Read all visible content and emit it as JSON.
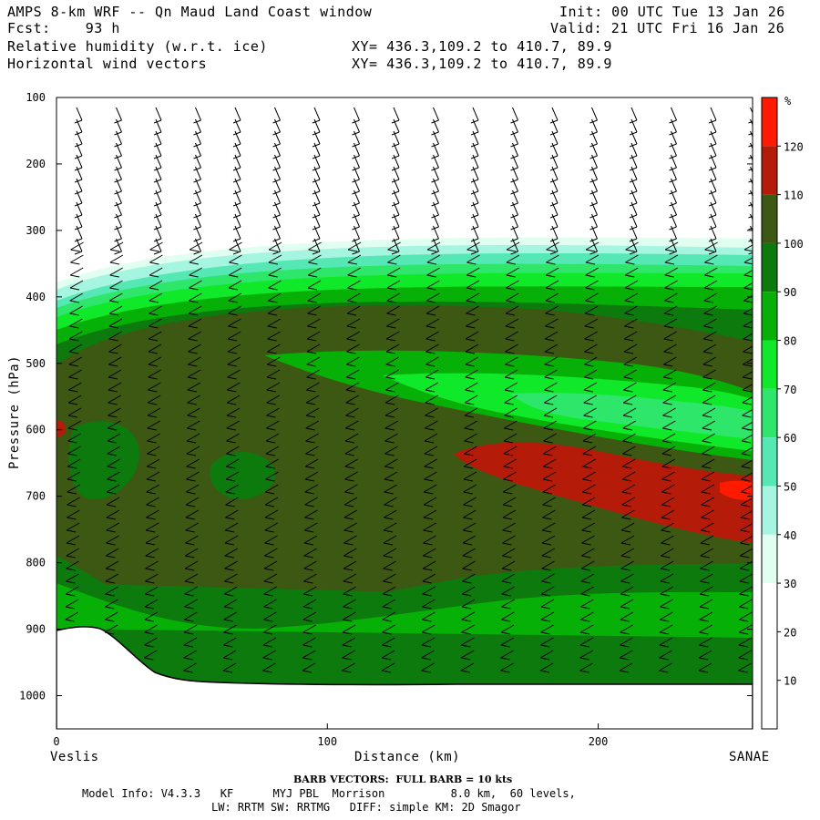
{
  "header": {
    "title_line": "AMPS 8-km WRF -- Qn Maud Land Coast window",
    "fcst_line": "Fcst:    93 h",
    "field1": "Relative humidity (w.r.t. ice)",
    "field2": "Horizontal wind vectors",
    "init_line": "Init: 00 UTC Tue 13 Jan 26",
    "valid_line": "Valid: 21 UTC Fri 16 Jan 26",
    "xy1": "XY= 436.3,109.2 to 410.7, 89.9",
    "xy2": "XY= 436.3,109.2 to 410.7, 89.9"
  },
  "footer": {
    "barb_note": "BARB VECTORS:  FULL BARB = 10 kts",
    "model_info": "Model Info: V4.3.3   KF      MYJ PBL  Morrison          8.0 km,  60 levels,",
    "model_info2": "LW: RRTM SW: RRTMG   DIFF: simple KM: 2D Smagor"
  },
  "chart_data": {
    "type": "heatmap",
    "title": "Relative humidity (w.r.t. ice) cross section with horizontal wind vectors",
    "xlabel": "Distance (km)",
    "ylabel": "Pressure (hPa)",
    "xlim": [
      0,
      257
    ],
    "ylim": [
      1050,
      100
    ],
    "x_ticks": [
      0,
      100,
      200
    ],
    "y_ticks": [
      100,
      200,
      300,
      400,
      500,
      600,
      700,
      800,
      900,
      1000
    ],
    "left_endpoint": "Veslis",
    "right_endpoint": "SANAE",
    "colorbar": {
      "unit": "%",
      "labels": [
        "10",
        "20",
        "30",
        "40",
        "50",
        "60",
        "70",
        "80",
        "90",
        "100",
        "110",
        "120"
      ],
      "colors": [
        "#ffffff",
        "#ffffff",
        "#ffffff",
        "#e0fff0",
        "#a6f5e0",
        "#55e8b4",
        "#2ee66a",
        "#10e82a",
        "#07b007",
        "#0c7a0c",
        "#3d5812",
        "#b51b09",
        "#ff1a00"
      ]
    },
    "colors": {
      "rh_100_110": "#3d5812",
      "rh_90_100": "#0c7a0c",
      "rh_80_90": "#07b007",
      "rh_70_80": "#10e82a",
      "rh_60_70": "#2ee66a",
      "rh_50_60": "#55e8b4",
      "rh_40_50": "#a6f5e0",
      "rh_30_40": "#e0fff0",
      "rh_110_120": "#b51b09",
      "rh_120_plus": "#ff1a00",
      "terrain": "#ffffff"
    }
  }
}
